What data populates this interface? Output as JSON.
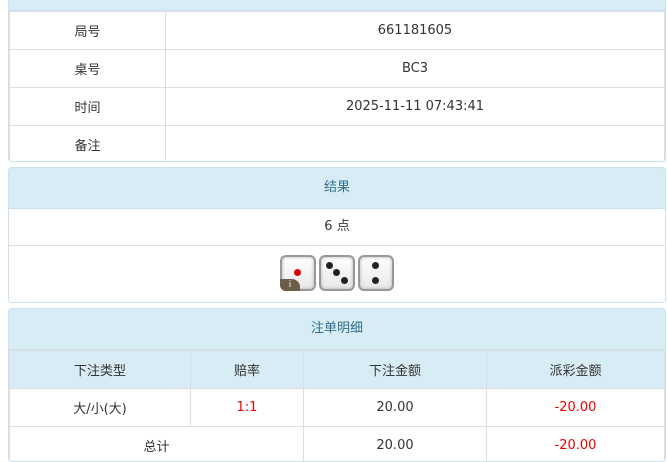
{
  "info": {
    "rows": [
      {
        "label": "局号",
        "value": "661181605"
      },
      {
        "label": "桌号",
        "value": "BC3"
      },
      {
        "label": "时间",
        "value": "2025-11-11 07:43:41"
      },
      {
        "label": "备注",
        "value": ""
      }
    ]
  },
  "result": {
    "title": "结果",
    "points": "6 点",
    "dice": [
      1,
      3,
      2
    ],
    "info_badge": "i"
  },
  "bets": {
    "title": "注单明细",
    "headers": [
      "下注类型",
      "赔率",
      "下注金额",
      "派彩金额"
    ],
    "rows": [
      {
        "type": "大/小(大)",
        "odds": "1:1",
        "amount": "20.00",
        "payout": "-20.00"
      }
    ],
    "total": {
      "label": "总计",
      "amount": "20.00",
      "payout": "-20.00"
    }
  },
  "colors": {
    "header_bg": "#d7ecf5",
    "negative": "#e00000"
  }
}
